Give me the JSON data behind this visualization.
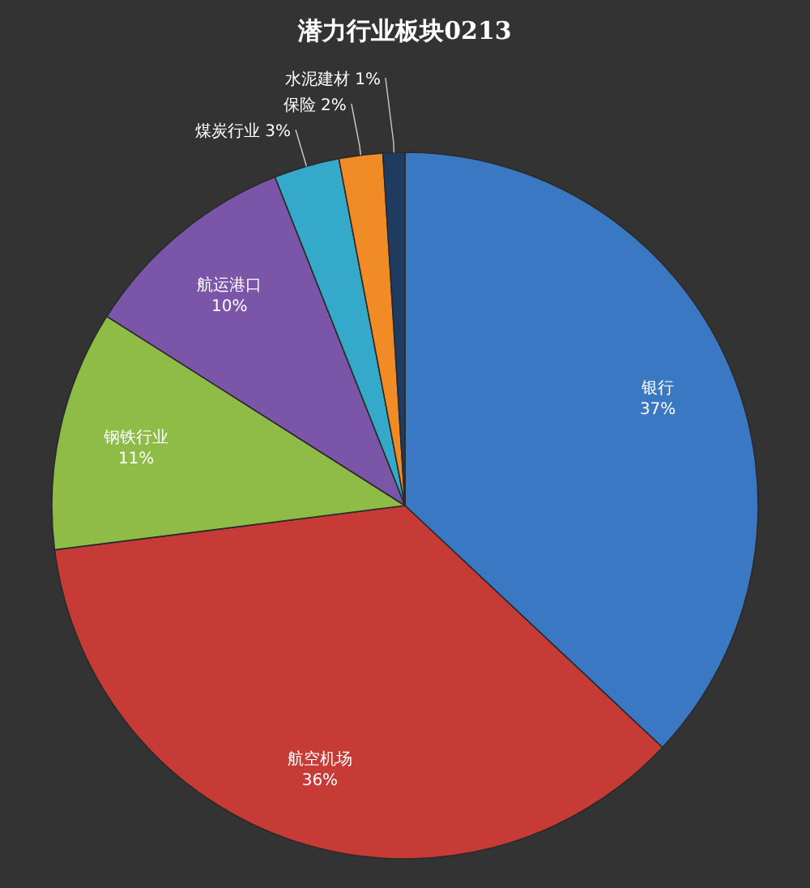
{
  "chart_data": {
    "type": "pie",
    "title": "潜力行业板块0213",
    "categories": [
      "银行",
      "航空机场",
      "钢铁行业",
      "航运港口",
      "煤炭行业",
      "保险",
      "水泥建材"
    ],
    "values": [
      37,
      36,
      11,
      10,
      3,
      2,
      1
    ],
    "value_labels": [
      "37%",
      "36%",
      "11%",
      "10%",
      "3%",
      "2%",
      "1%"
    ],
    "colors": [
      "#3b78c3",
      "#c73b37",
      "#8fbc47",
      "#7b55a8",
      "#35a9c9",
      "#f08b25",
      "#1f3b60"
    ]
  }
}
